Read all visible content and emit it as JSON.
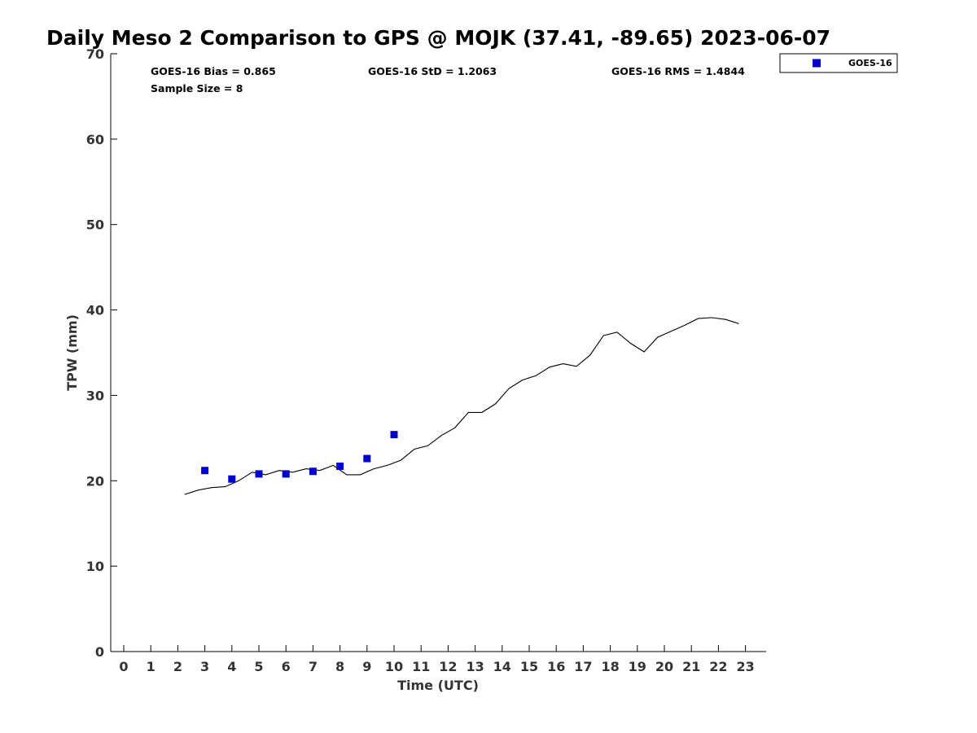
{
  "chart_data": {
    "type": "scatter",
    "title": "Daily Meso 2 Comparison to GPS @ MOJK (37.41, -89.65) 2023-06-07",
    "xlabel": "Time (UTC)",
    "ylabel": "TPW (mm)",
    "xlim": [
      -0.5,
      23.75
    ],
    "ylim": [
      0,
      70
    ],
    "x_ticks": [
      "0",
      "1",
      "2",
      "3",
      "4",
      "5",
      "6",
      "7",
      "8",
      "9",
      "10",
      "11",
      "12",
      "13",
      "14",
      "15",
      "16",
      "17",
      "18",
      "19",
      "20",
      "21",
      "22",
      "23"
    ],
    "y_ticks": [
      "0",
      "10",
      "20",
      "30",
      "40",
      "50",
      "60",
      "70"
    ],
    "grid": false,
    "legend_position": "top-right outside",
    "stats": {
      "bias": "GOES-16 Bias = 0.865",
      "std": "GOES-16 StD = 1.2063",
      "rms": "GOES-16 RMS = 1.4844",
      "sample": "Sample Size = 8"
    },
    "series": [
      {
        "name": "GOES-16",
        "kind": "scatter",
        "marker": "square",
        "color": "#0000cc",
        "x": [
          3,
          4,
          5,
          6,
          7,
          8,
          9,
          10
        ],
        "y": [
          21.2,
          20.2,
          20.8,
          20.8,
          21.1,
          21.7,
          22.6,
          25.4
        ]
      },
      {
        "kind": "line",
        "color": "#000000",
        "x": [
          2.25,
          2.75,
          3.25,
          3.75,
          4.25,
          4.75,
          5.25,
          5.75,
          6.25,
          6.75,
          7.25,
          7.75,
          8.25,
          8.75,
          9.25,
          9.75,
          10.25,
          10.75,
          11.25,
          11.75,
          12.25,
          12.75,
          13.25,
          13.75,
          14.25,
          14.75,
          15.25,
          15.75,
          16.25,
          16.75,
          17.25,
          17.75,
          18.25,
          18.75,
          19.25,
          19.75,
          20.25,
          20.75,
          21.25,
          21.75,
          22.25,
          22.75
        ],
        "y": [
          18.4,
          18.9,
          19.2,
          19.3,
          20.0,
          21.0,
          20.7,
          21.2,
          21.0,
          21.4,
          21.2,
          21.8,
          20.7,
          20.7,
          21.4,
          21.8,
          22.4,
          23.7,
          24.1,
          25.3,
          26.2,
          28.0,
          28.0,
          29.0,
          30.8,
          31.8,
          32.3,
          33.3,
          33.7,
          33.4,
          34.7,
          37.0,
          37.4,
          36.1,
          35.1,
          36.8,
          37.5,
          38.2,
          39.0,
          39.1,
          38.9,
          38.4
        ]
      }
    ]
  }
}
